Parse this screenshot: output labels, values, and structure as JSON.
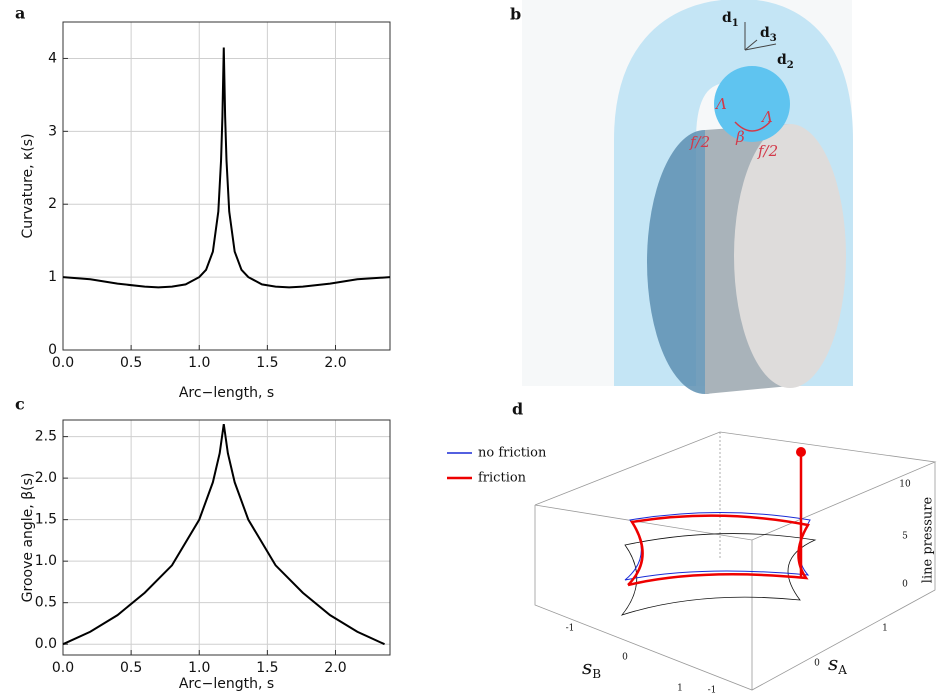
{
  "chart_data": [
    {
      "type": "line",
      "label": "a",
      "xlabel": "Arc−length, s",
      "ylabel": "Curvature, κ(s)",
      "x": [
        0,
        0.2,
        0.4,
        0.6,
        0.7,
        0.8,
        0.9,
        1.0,
        1.05,
        1.1,
        1.14,
        1.16,
        1.17,
        1.18,
        1.19,
        1.2,
        1.22,
        1.26,
        1.31,
        1.36,
        1.46,
        1.56,
        1.66,
        1.76,
        1.96,
        2.16,
        2.4
      ],
      "series": [
        {
          "color": "#000000",
          "values": [
            1.0,
            0.97,
            0.91,
            0.87,
            0.86,
            0.87,
            0.9,
            1.0,
            1.1,
            1.35,
            1.9,
            2.6,
            3.2,
            4.15,
            3.2,
            2.6,
            1.9,
            1.35,
            1.1,
            1.0,
            0.9,
            0.87,
            0.86,
            0.87,
            0.91,
            0.97,
            1.0
          ]
        }
      ],
      "xlim": [
        0,
        2.4
      ],
      "ylim": [
        0,
        4.5
      ],
      "xticks": [
        {
          "value": 0,
          "label": "0.0"
        },
        {
          "value": 0.5,
          "label": "0.5"
        },
        {
          "value": 1,
          "label": "1.0"
        },
        {
          "value": 1.5,
          "label": "1.5"
        },
        {
          "value": 2,
          "label": "2.0"
        }
      ],
      "yticks": [
        0,
        1,
        2,
        3,
        4
      ],
      "grid": true
    },
    {
      "type": "line",
      "label": "c",
      "xlabel": "Arc−length, s",
      "ylabel": "Groove angle, β(s)",
      "x": [
        0,
        0.2,
        0.4,
        0.6,
        0.8,
        1.0,
        1.1,
        1.15,
        1.18,
        1.21,
        1.26,
        1.36,
        1.56,
        1.76,
        1.96,
        2.16,
        2.36
      ],
      "series": [
        {
          "color": "#000000",
          "values": [
            0,
            0.15,
            0.35,
            0.62,
            0.95,
            1.5,
            1.95,
            2.3,
            2.65,
            2.3,
            1.95,
            1.5,
            0.95,
            0.62,
            0.35,
            0.15,
            0
          ]
        }
      ],
      "xlim": [
        0,
        2.4
      ],
      "ylim": [
        -0.13,
        2.7
      ],
      "xticks": [
        {
          "value": 0,
          "label": "0.0"
        },
        {
          "value": 0.5,
          "label": "0.5"
        },
        {
          "value": 1,
          "label": "1.0"
        },
        {
          "value": 1.5,
          "label": "1.5"
        },
        {
          "value": 2,
          "label": "2.0"
        }
      ],
      "yticks": [
        {
          "value": 0,
          "label": "0.0"
        },
        {
          "value": 0.5,
          "label": "0.5"
        },
        {
          "value": 1,
          "label": "1.0"
        },
        {
          "value": 1.5,
          "label": "1.5"
        },
        {
          "value": 2,
          "label": "2.0"
        },
        {
          "value": 2.5,
          "label": "2.5"
        }
      ],
      "grid": true
    }
  ],
  "illustration": {
    "label": "b",
    "axes": [
      {
        "text": "d",
        "sub": "1"
      },
      {
        "text": "d",
        "sub": "3"
      },
      {
        "text": "d",
        "sub": "2"
      }
    ],
    "annotations": [
      "Λ",
      "Λ",
      "β",
      "f/2",
      "f/2"
    ]
  },
  "plot_3d": {
    "label": "d",
    "legend": [
      {
        "name": "no friction",
        "color": "#1a2bd6"
      },
      {
        "name": "friction",
        "color": "#ee0000"
      }
    ],
    "zticks": [
      10,
      5,
      0
    ],
    "z_label": "line pressure",
    "sb_ticks": [
      -1,
      0,
      1
    ],
    "sa_ticks": [
      1,
      0,
      -1
    ],
    "sb_label": {
      "text": "s",
      "sub": "B"
    },
    "sa_label": {
      "text": "s",
      "sub": "A"
    }
  }
}
